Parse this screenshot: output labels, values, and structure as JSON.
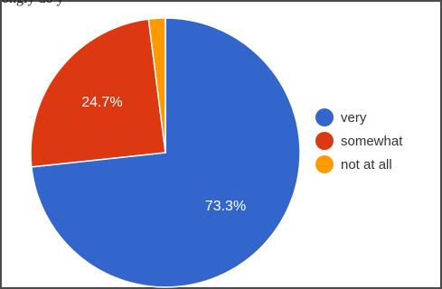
{
  "partial_text": "ongly do y",
  "chart_data": {
    "type": "pie",
    "categories": [
      "very",
      "somewhat",
      "not at all"
    ],
    "values": [
      73.3,
      24.7,
      2.0
    ],
    "labels": [
      "73.3%",
      "24.7%",
      ""
    ],
    "colors": [
      "#3366cc",
      "#dc3912",
      "#ff9900"
    ],
    "legend": "right"
  }
}
